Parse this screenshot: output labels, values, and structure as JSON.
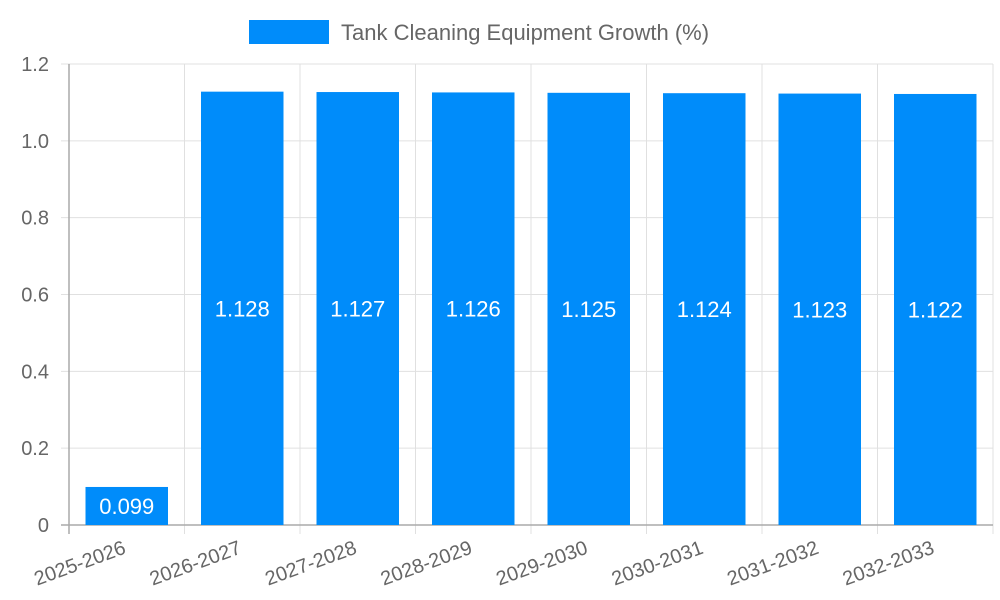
{
  "chart_data": {
    "type": "bar",
    "title": "",
    "xlabel": "",
    "ylabel": "",
    "categories": [
      "2025-2026",
      "2026-2027",
      "2027-2028",
      "2028-2029",
      "2029-2030",
      "2030-2031",
      "2031-2032",
      "2032-2033"
    ],
    "series": [
      {
        "name": "Tank Cleaning Equipment Growth (%)",
        "color": "#008cfa",
        "values": [
          0.099,
          1.128,
          1.127,
          1.126,
          1.125,
          1.124,
          1.123,
          1.122
        ],
        "labels": [
          "0.099",
          "1.128",
          "1.127",
          "1.126",
          "1.125",
          "1.124",
          "1.123",
          "1.122"
        ]
      }
    ],
    "ylim": [
      0,
      1.2
    ],
    "yticks": [
      "0",
      "0.2",
      "0.4",
      "0.6",
      "0.8",
      "1.0",
      "1.2"
    ],
    "grid": true,
    "legend_position": "top",
    "x_tick_rotation": -20
  }
}
